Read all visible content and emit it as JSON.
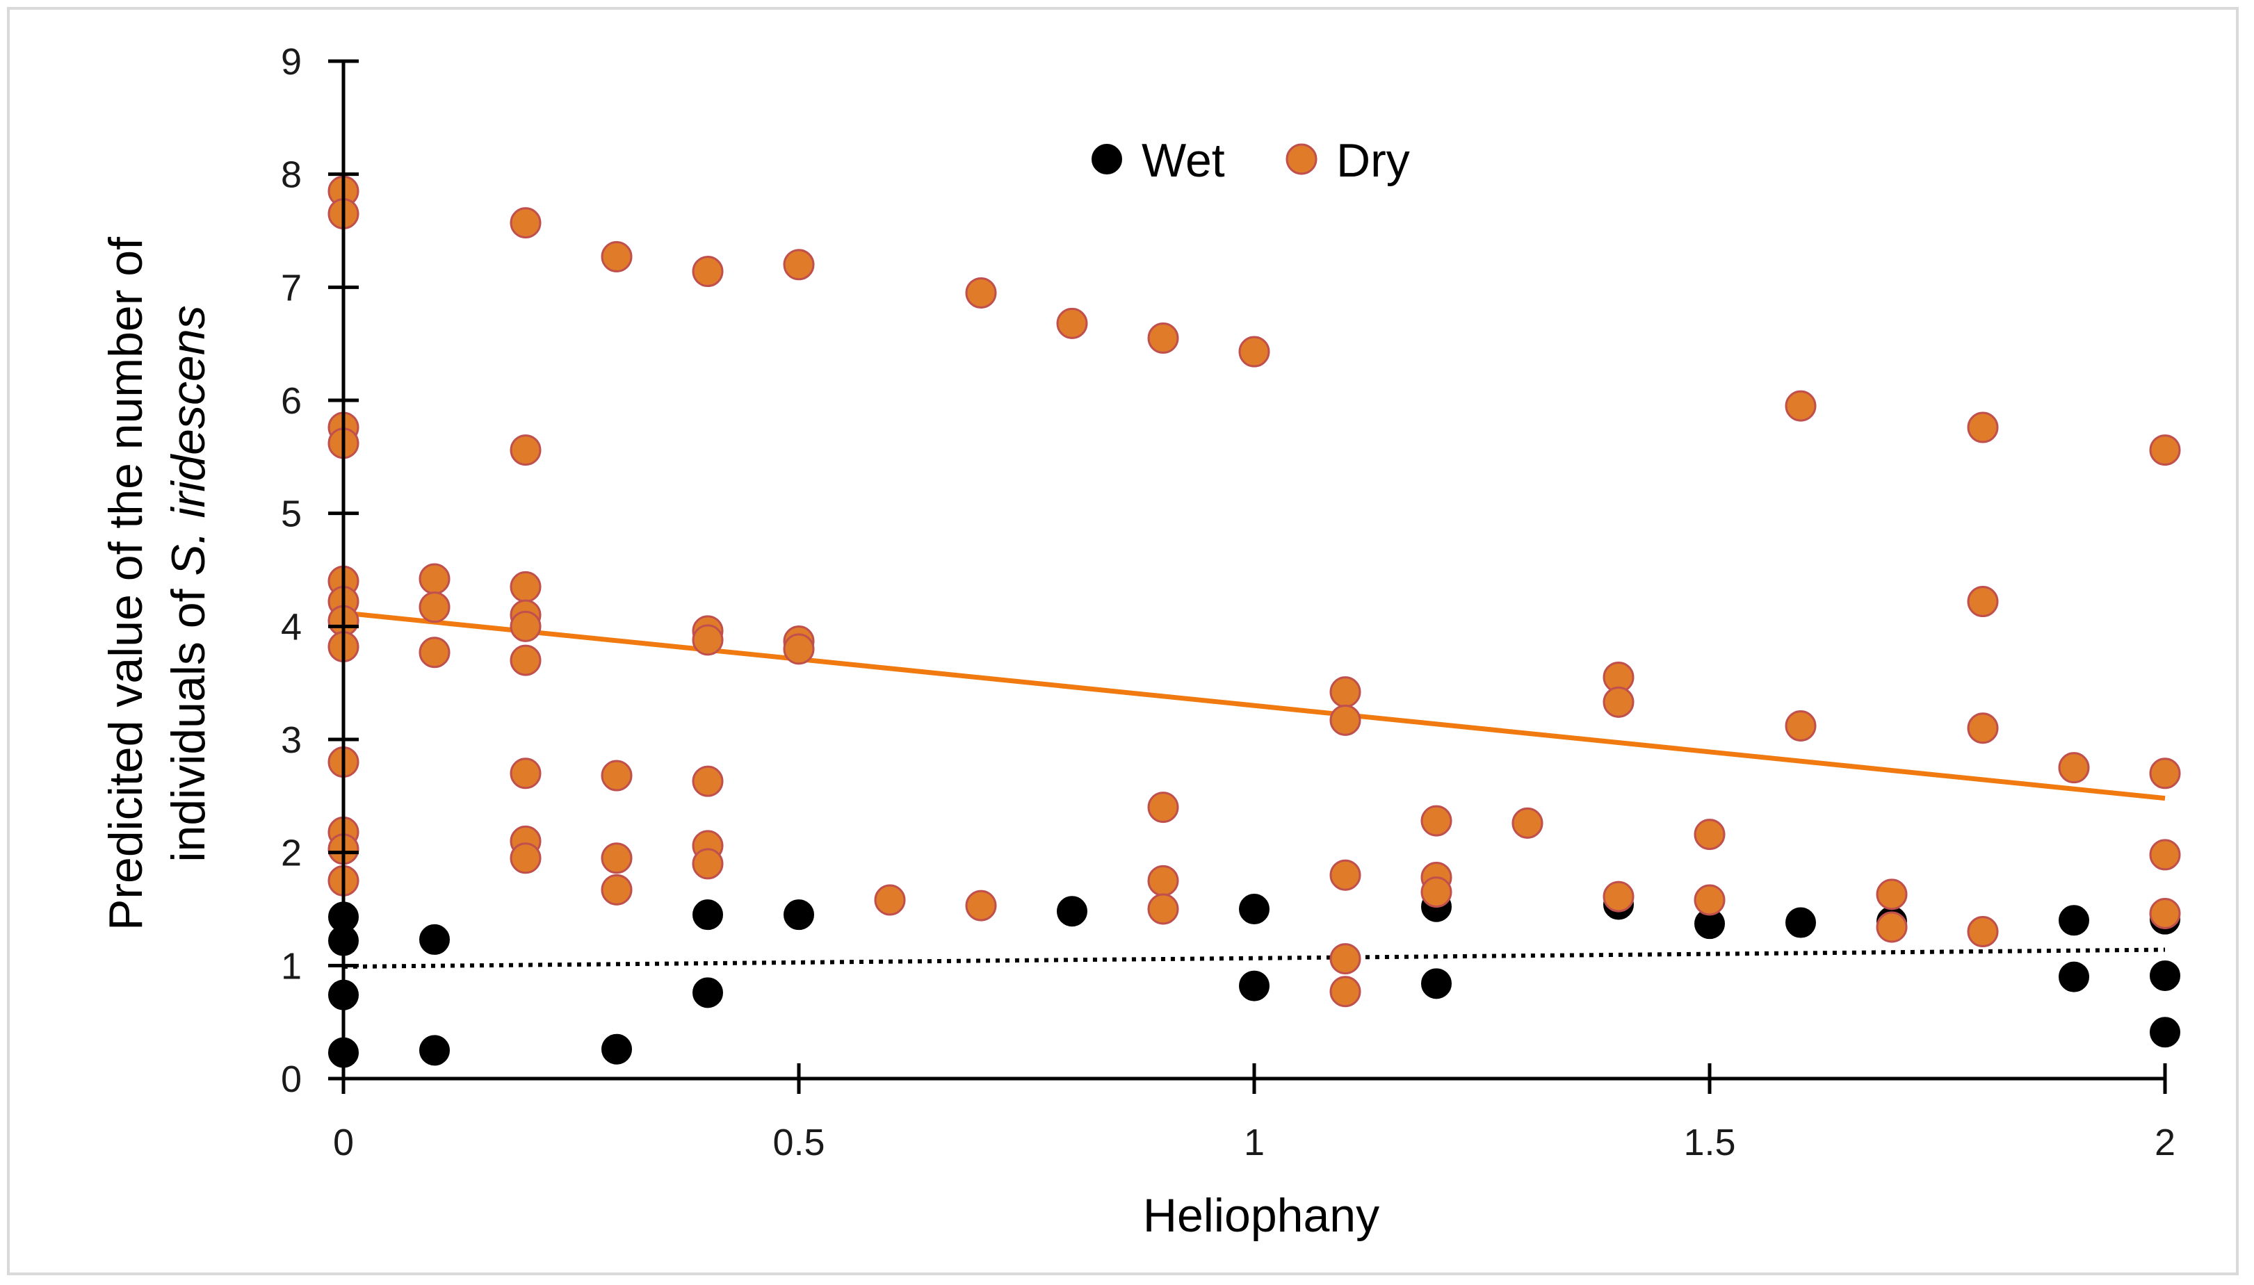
{
  "chart_data": {
    "type": "scatter",
    "title": "",
    "xlabel": "Heliophany",
    "ylabel_line1": "Predicited value of the number of",
    "ylabel_line2_prefix": "individuals of ",
    "ylabel_line2_species": "S. iridescens",
    "xlim": [
      0,
      2
    ],
    "ylim": [
      0,
      9
    ],
    "x_ticks": [
      {
        "value": 0,
        "label": "0"
      },
      {
        "value": 0.5,
        "label": "0.5"
      },
      {
        "value": 1,
        "label": "1"
      },
      {
        "value": 1.5,
        "label": "1.5"
      },
      {
        "value": 2,
        "label": "2"
      }
    ],
    "y_ticks": [
      {
        "value": 0,
        "label": "0"
      },
      {
        "value": 1,
        "label": "1"
      },
      {
        "value": 2,
        "label": "2"
      },
      {
        "value": 3,
        "label": "3"
      },
      {
        "value": 4,
        "label": "4"
      },
      {
        "value": 5,
        "label": "5"
      },
      {
        "value": 6,
        "label": "6"
      },
      {
        "value": 7,
        "label": "7"
      },
      {
        "value": 8,
        "label": "8"
      },
      {
        "value": 9,
        "label": "9"
      }
    ],
    "grid": false,
    "legend_position": "top-center",
    "series": [
      {
        "name": "Wet",
        "color": "#000000",
        "points": [
          {
            "x": 0,
            "y": 1.43
          },
          {
            "x": 0,
            "y": 1.22
          },
          {
            "x": 0,
            "y": 0.74
          },
          {
            "x": 0,
            "y": 0.23
          },
          {
            "x": 0.1,
            "y": 1.23
          },
          {
            "x": 0.1,
            "y": 0.25
          },
          {
            "x": 0.3,
            "y": 0.26
          },
          {
            "x": 0.4,
            "y": 1.45
          },
          {
            "x": 0.4,
            "y": 0.76
          },
          {
            "x": 0.5,
            "y": 1.45
          },
          {
            "x": 0.8,
            "y": 1.48
          },
          {
            "x": 1.0,
            "y": 1.5
          },
          {
            "x": 1.0,
            "y": 0.82
          },
          {
            "x": 1.2,
            "y": 1.52
          },
          {
            "x": 1.2,
            "y": 0.84
          },
          {
            "x": 1.4,
            "y": 1.54
          },
          {
            "x": 1.5,
            "y": 1.37
          },
          {
            "x": 1.6,
            "y": 1.38
          },
          {
            "x": 1.7,
            "y": 1.39
          },
          {
            "x": 1.9,
            "y": 1.4
          },
          {
            "x": 1.9,
            "y": 0.9
          },
          {
            "x": 2.0,
            "y": 1.41
          },
          {
            "x": 2.0,
            "y": 0.91
          },
          {
            "x": 2.0,
            "y": 0.41
          }
        ],
        "trendline": {
          "style": "dotted",
          "color": "#000000",
          "x": [
            0,
            2
          ],
          "y": [
            0.99,
            1.14
          ]
        }
      },
      {
        "name": "Dry",
        "color": "#e07b2a",
        "points": [
          {
            "x": 0,
            "y": 7.85
          },
          {
            "x": 0,
            "y": 7.65
          },
          {
            "x": 0,
            "y": 5.76
          },
          {
            "x": 0,
            "y": 5.62
          },
          {
            "x": 0,
            "y": 4.4
          },
          {
            "x": 0,
            "y": 4.22
          },
          {
            "x": 0,
            "y": 4.05
          },
          {
            "x": 0,
            "y": 3.82
          },
          {
            "x": 0,
            "y": 2.8
          },
          {
            "x": 0,
            "y": 2.18
          },
          {
            "x": 0,
            "y": 2.03
          },
          {
            "x": 0,
            "y": 1.75
          },
          {
            "x": 0.1,
            "y": 4.42
          },
          {
            "x": 0.1,
            "y": 4.17
          },
          {
            "x": 0.1,
            "y": 3.77
          },
          {
            "x": 0.2,
            "y": 7.57
          },
          {
            "x": 0.2,
            "y": 5.56
          },
          {
            "x": 0.2,
            "y": 4.35
          },
          {
            "x": 0.2,
            "y": 4.1
          },
          {
            "x": 0.2,
            "y": 4.0
          },
          {
            "x": 0.2,
            "y": 3.7
          },
          {
            "x": 0.2,
            "y": 2.7
          },
          {
            "x": 0.2,
            "y": 2.1
          },
          {
            "x": 0.2,
            "y": 1.95
          },
          {
            "x": 0.3,
            "y": 7.27
          },
          {
            "x": 0.3,
            "y": 2.68
          },
          {
            "x": 0.3,
            "y": 1.95
          },
          {
            "x": 0.3,
            "y": 1.67
          },
          {
            "x": 0.4,
            "y": 7.14
          },
          {
            "x": 0.4,
            "y": 3.96
          },
          {
            "x": 0.4,
            "y": 3.88
          },
          {
            "x": 0.4,
            "y": 2.63
          },
          {
            "x": 0.4,
            "y": 2.06
          },
          {
            "x": 0.4,
            "y": 1.9
          },
          {
            "x": 0.5,
            "y": 7.2
          },
          {
            "x": 0.5,
            "y": 3.87
          },
          {
            "x": 0.5,
            "y": 3.8
          },
          {
            "x": 0.6,
            "y": 1.58
          },
          {
            "x": 0.7,
            "y": 6.95
          },
          {
            "x": 0.7,
            "y": 1.53
          },
          {
            "x": 0.8,
            "y": 6.68
          },
          {
            "x": 0.9,
            "y": 6.55
          },
          {
            "x": 0.9,
            "y": 2.4
          },
          {
            "x": 0.9,
            "y": 1.75
          },
          {
            "x": 0.9,
            "y": 1.5
          },
          {
            "x": 1.0,
            "y": 6.43
          },
          {
            "x": 1.1,
            "y": 3.42
          },
          {
            "x": 1.1,
            "y": 3.17
          },
          {
            "x": 1.1,
            "y": 1.8
          },
          {
            "x": 1.1,
            "y": 1.06
          },
          {
            "x": 1.1,
            "y": 0.77
          },
          {
            "x": 1.2,
            "y": 2.28
          },
          {
            "x": 1.2,
            "y": 1.78
          },
          {
            "x": 1.2,
            "y": 1.65
          },
          {
            "x": 1.3,
            "y": 2.26
          },
          {
            "x": 1.4,
            "y": 3.55
          },
          {
            "x": 1.4,
            "y": 3.33
          },
          {
            "x": 1.4,
            "y": 1.61
          },
          {
            "x": 1.5,
            "y": 2.16
          },
          {
            "x": 1.5,
            "y": 1.58
          },
          {
            "x": 1.6,
            "y": 5.95
          },
          {
            "x": 1.6,
            "y": 3.12
          },
          {
            "x": 1.7,
            "y": 1.63
          },
          {
            "x": 1.7,
            "y": 1.34
          },
          {
            "x": 1.8,
            "y": 5.76
          },
          {
            "x": 1.8,
            "y": 4.22
          },
          {
            "x": 1.8,
            "y": 3.1
          },
          {
            "x": 1.8,
            "y": 1.3
          },
          {
            "x": 1.9,
            "y": 2.75
          },
          {
            "x": 2.0,
            "y": 5.56
          },
          {
            "x": 2.0,
            "y": 2.7
          },
          {
            "x": 2.0,
            "y": 1.98
          },
          {
            "x": 2.0,
            "y": 1.46
          }
        ],
        "trendline": {
          "style": "solid",
          "color": "#f07a10",
          "x": [
            0,
            2
          ],
          "y": [
            4.12,
            2.48
          ]
        }
      }
    ]
  }
}
